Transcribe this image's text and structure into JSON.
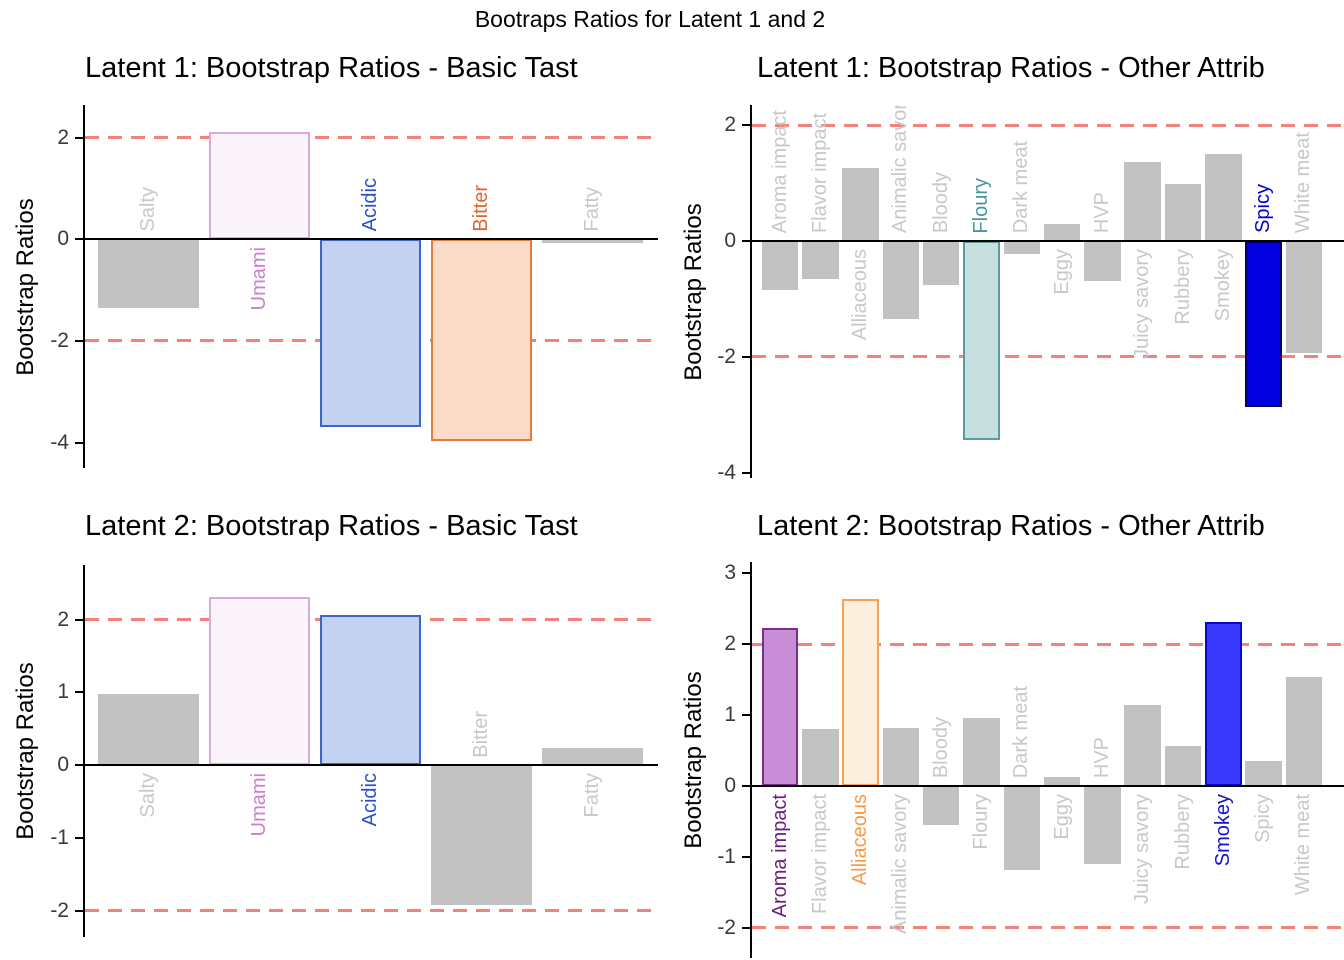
{
  "figure": {
    "title": "Bootraps Ratios for Latent 1 and 2"
  },
  "palette": {
    "threshold_line": "#F4827C",
    "axis_line": "#000000",
    "tick_text": "#3A3A3A",
    "title_text": "#000000",
    "gray_bar_fill": "#C2C2C2",
    "gray_bar_border": "#C2C2C2",
    "gray_label": "#C8C8C8"
  },
  "chart_data": [
    {
      "type": "bar",
      "title": "Latent 1: Bootstrap Ratios - Basic Tast",
      "ylabel": "Bootstrap Ratios",
      "thresholds": [
        2,
        -2
      ],
      "yticks": [
        2,
        0,
        -2,
        -4
      ],
      "ylim": [
        -4.5,
        2.64
      ],
      "grid": false,
      "bars": [
        {
          "label": "Salty",
          "value": -1.36,
          "fill": "#C2C2C2",
          "border": "#C2C2C2",
          "label_color": "#C8C8C8"
        },
        {
          "label": "Umami",
          "value": 2.1,
          "fill": "#FBF4FB",
          "border": "#DAA8DB",
          "label_color": "#CC7FCC"
        },
        {
          "label": "Acidic",
          "value": -3.7,
          "fill": "#C4D2F2",
          "border": "#3D65D1",
          "label_color": "#2C4FD0"
        },
        {
          "label": "Bitter",
          "value": -3.97,
          "fill": "#FADCC8",
          "border": "#E5793E",
          "label_color": "#E0662F"
        },
        {
          "label": "Fatty",
          "value": -0.06,
          "fill": "#C2C2C2",
          "border": "#C2C2C2",
          "label_color": "#C8C8C8"
        }
      ]
    },
    {
      "type": "bar",
      "title": "Latent 1: Bootstrap Ratios - Other Attrib",
      "ylabel": "Bootstrap Ratios",
      "thresholds": [
        2,
        -2
      ],
      "yticks": [
        2,
        0,
        -2,
        -4
      ],
      "ylim": [
        -4.09,
        2.35
      ],
      "grid": false,
      "bars": [
        {
          "label": "Aroma impact",
          "value": -0.84,
          "fill": "#C2C2C2",
          "border": "#C2C2C2",
          "label_color": "#C8C8C8"
        },
        {
          "label": "Flavor impact",
          "value": -0.65,
          "fill": "#C2C2C2",
          "border": "#C2C2C2",
          "label_color": "#C8C8C8"
        },
        {
          "label": "Alliaceous",
          "value": 1.26,
          "fill": "#C2C2C2",
          "border": "#C2C2C2",
          "label_color": "#C8C8C8"
        },
        {
          "label": "Animalic savory",
          "value": -1.34,
          "fill": "#C2C2C2",
          "border": "#C2C2C2",
          "label_color": "#C8C8C8"
        },
        {
          "label": "Bloody",
          "value": -0.75,
          "fill": "#C2C2C2",
          "border": "#C2C2C2",
          "label_color": "#C8C8C8"
        },
        {
          "label": "Floury",
          "value": -3.43,
          "fill": "#C8DFDF",
          "border": "#579DA3",
          "label_color": "#48969E"
        },
        {
          "label": "Dark meat",
          "value": -0.22,
          "fill": "#C2C2C2",
          "border": "#C2C2C2",
          "label_color": "#C8C8C8"
        },
        {
          "label": "Eggy",
          "value": 0.29,
          "fill": "#C2C2C2",
          "border": "#C2C2C2",
          "label_color": "#C8C8C8"
        },
        {
          "label": "HVP",
          "value": -0.69,
          "fill": "#C2C2C2",
          "border": "#C2C2C2",
          "label_color": "#C8C8C8"
        },
        {
          "label": "Juicy savory",
          "value": 1.37,
          "fill": "#C2C2C2",
          "border": "#C2C2C2",
          "label_color": "#C8C8C8"
        },
        {
          "label": "Rubbery",
          "value": 0.98,
          "fill": "#C2C2C2",
          "border": "#C2C2C2",
          "label_color": "#C8C8C8"
        },
        {
          "label": "Smokey",
          "value": 1.51,
          "fill": "#C2C2C2",
          "border": "#C2C2C2",
          "label_color": "#C8C8C8"
        },
        {
          "label": "Spicy",
          "value": -2.86,
          "fill": "#0000E0",
          "border": "#00006E",
          "label_color": "#0000CD"
        },
        {
          "label": "White meat",
          "value": -1.93,
          "fill": "#C2C2C2",
          "border": "#C2C2C2",
          "label_color": "#C8C8C8"
        }
      ]
    },
    {
      "type": "bar",
      "title": "Latent 2: Bootstrap Ratios - Basic Tast",
      "ylabel": "Bootstrap Ratios",
      "thresholds": [
        2,
        -2
      ],
      "yticks": [
        2,
        1,
        0,
        -1,
        -2
      ],
      "ylim": [
        -2.36,
        2.75
      ],
      "grid": false,
      "bars": [
        {
          "label": "Salty",
          "value": 0.98,
          "fill": "#C2C2C2",
          "border": "#C2C2C2",
          "label_color": "#C8C8C8"
        },
        {
          "label": "Umami",
          "value": 2.31,
          "fill": "#FBF4FB",
          "border": "#DAA8DB",
          "label_color": "#CC7FCC"
        },
        {
          "label": "Acidic",
          "value": 2.07,
          "fill": "#C4D2F2",
          "border": "#3D65D1",
          "label_color": "#2C4FD0"
        },
        {
          "label": "Bitter",
          "value": -1.92,
          "fill": "#C2C2C2",
          "border": "#C2C2C2",
          "label_color": "#C8C8C8"
        },
        {
          "label": "Fatty",
          "value": 0.24,
          "fill": "#C2C2C2",
          "border": "#C2C2C2",
          "label_color": "#C8C8C8"
        }
      ]
    },
    {
      "type": "bar",
      "title": "Latent 2: Bootstrap Ratios - Other Attrib",
      "ylabel": "Bootstrap Ratios",
      "thresholds": [
        2,
        -2
      ],
      "yticks": [
        3,
        2,
        1,
        0,
        -1,
        -2
      ],
      "ylim": [
        -2.43,
        3.16
      ],
      "grid": false,
      "bars": [
        {
          "label": "Aroma impact",
          "value": 2.23,
          "fill": "#C88FD8",
          "border": "#7A2D89",
          "label_color": "#6A1F7F"
        },
        {
          "label": "Flavor impact",
          "value": 0.8,
          "fill": "#C2C2C2",
          "border": "#C2C2C2",
          "label_color": "#C8C8C8"
        },
        {
          "label": "Alliaceous",
          "value": 2.64,
          "fill": "#FDEFDE",
          "border": "#FAA153",
          "label_color": "#F89A45"
        },
        {
          "label": "Animalic savory",
          "value": 0.81,
          "fill": "#C2C2C2",
          "border": "#C2C2C2",
          "label_color": "#C8C8C8"
        },
        {
          "label": "Bloody",
          "value": -0.55,
          "fill": "#C2C2C2",
          "border": "#C2C2C2",
          "label_color": "#C8C8C8"
        },
        {
          "label": "Floury",
          "value": 0.96,
          "fill": "#C2C2C2",
          "border": "#C2C2C2",
          "label_color": "#C8C8C8"
        },
        {
          "label": "Dark meat",
          "value": -1.19,
          "fill": "#C2C2C2",
          "border": "#C2C2C2",
          "label_color": "#C8C8C8"
        },
        {
          "label": "Eggy",
          "value": 0.12,
          "fill": "#C2C2C2",
          "border": "#C2C2C2",
          "label_color": "#C8C8C8"
        },
        {
          "label": "HVP",
          "value": -1.1,
          "fill": "#C2C2C2",
          "border": "#C2C2C2",
          "label_color": "#C8C8C8"
        },
        {
          "label": "Juicy savory",
          "value": 1.14,
          "fill": "#C2C2C2",
          "border": "#C2C2C2",
          "label_color": "#C8C8C8"
        },
        {
          "label": "Rubbery",
          "value": 0.56,
          "fill": "#C2C2C2",
          "border": "#C2C2C2",
          "label_color": "#C8C8C8"
        },
        {
          "label": "Smokey",
          "value": 2.32,
          "fill": "#3939FB",
          "border": "#0909C9",
          "label_color": "#1212CC"
        },
        {
          "label": "Spicy",
          "value": 0.35,
          "fill": "#C2C2C2",
          "border": "#C2C2C2",
          "label_color": "#C8C8C8"
        },
        {
          "label": "White meat",
          "value": 1.53,
          "fill": "#C2C2C2",
          "border": "#C2C2C2",
          "label_color": "#C8C8C8"
        }
      ]
    }
  ]
}
